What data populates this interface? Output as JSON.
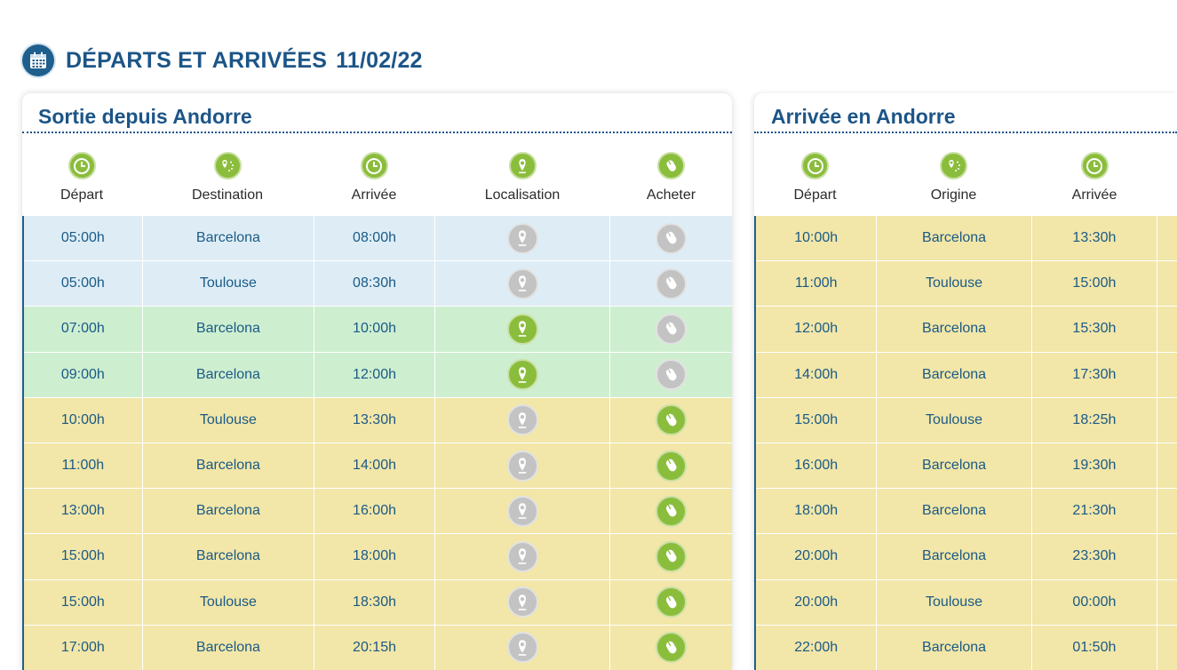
{
  "page": {
    "title": "DÉPARTS ET ARRIVÉES",
    "date": "11/02/22",
    "icon": "calendar-icon"
  },
  "departures": {
    "title": "Sortie depuis Andorre",
    "headers": [
      "Départ",
      "Destination",
      "Arrivée",
      "Localisation",
      "Acheter"
    ],
    "header_icons": [
      "clock-icon",
      "route-icon",
      "clock-icon",
      "location-pin-icon",
      "mouse-icon"
    ],
    "rows": [
      {
        "depart": "05:00h",
        "destination": "Barcelona",
        "arrivee": "08:00h",
        "row_color": "blue",
        "location_active": false,
        "buy_active": false
      },
      {
        "depart": "05:00h",
        "destination": "Toulouse",
        "arrivee": "08:30h",
        "row_color": "blue",
        "location_active": false,
        "buy_active": false
      },
      {
        "depart": "07:00h",
        "destination": "Barcelona",
        "arrivee": "10:00h",
        "row_color": "green",
        "location_active": true,
        "buy_active": false
      },
      {
        "depart": "09:00h",
        "destination": "Barcelona",
        "arrivee": "12:00h",
        "row_color": "green",
        "location_active": true,
        "buy_active": false
      },
      {
        "depart": "10:00h",
        "destination": "Toulouse",
        "arrivee": "13:30h",
        "row_color": "yellow",
        "location_active": false,
        "buy_active": true
      },
      {
        "depart": "11:00h",
        "destination": "Barcelona",
        "arrivee": "14:00h",
        "row_color": "yellow",
        "location_active": false,
        "buy_active": true
      },
      {
        "depart": "13:00h",
        "destination": "Barcelona",
        "arrivee": "16:00h",
        "row_color": "yellow",
        "location_active": false,
        "buy_active": true
      },
      {
        "depart": "15:00h",
        "destination": "Barcelona",
        "arrivee": "18:00h",
        "row_color": "yellow",
        "location_active": false,
        "buy_active": true
      },
      {
        "depart": "15:00h",
        "destination": "Toulouse",
        "arrivee": "18:30h",
        "row_color": "yellow",
        "location_active": false,
        "buy_active": true
      },
      {
        "depart": "17:00h",
        "destination": "Barcelona",
        "arrivee": "20:15h",
        "row_color": "yellow",
        "location_active": false,
        "buy_active": true
      }
    ]
  },
  "arrivals": {
    "title": "Arrivée en Andorre",
    "headers": [
      "Départ",
      "Origine",
      "Arrivée"
    ],
    "header_icons": [
      "clock-icon",
      "route-icon",
      "clock-icon"
    ],
    "rows": [
      {
        "depart": "10:00h",
        "origine": "Barcelona",
        "arrivee": "13:30h"
      },
      {
        "depart": "11:00h",
        "origine": "Toulouse",
        "arrivee": "15:00h"
      },
      {
        "depart": "12:00h",
        "origine": "Barcelona",
        "arrivee": "15:30h"
      },
      {
        "depart": "14:00h",
        "origine": "Barcelona",
        "arrivee": "17:30h"
      },
      {
        "depart": "15:00h",
        "origine": "Toulouse",
        "arrivee": "18:25h"
      },
      {
        "depart": "16:00h",
        "origine": "Barcelona",
        "arrivee": "19:30h"
      },
      {
        "depart": "18:00h",
        "origine": "Barcelona",
        "arrivee": "21:30h"
      },
      {
        "depart": "20:00h",
        "origine": "Barcelona",
        "arrivee": "23:30h"
      },
      {
        "depart": "20:00h",
        "origine": "Toulouse",
        "arrivee": "00:00h"
      },
      {
        "depart": "22:00h",
        "origine": "Barcelona",
        "arrivee": "01:50h"
      }
    ]
  },
  "colors": {
    "accent_blue": "#1c5587",
    "icon_green": "#8bbd3c",
    "icon_gray": "#c3c3c3",
    "row_blue": "#deedf5",
    "row_green": "#ceeed0",
    "row_yellow": "#f2e6a8"
  }
}
